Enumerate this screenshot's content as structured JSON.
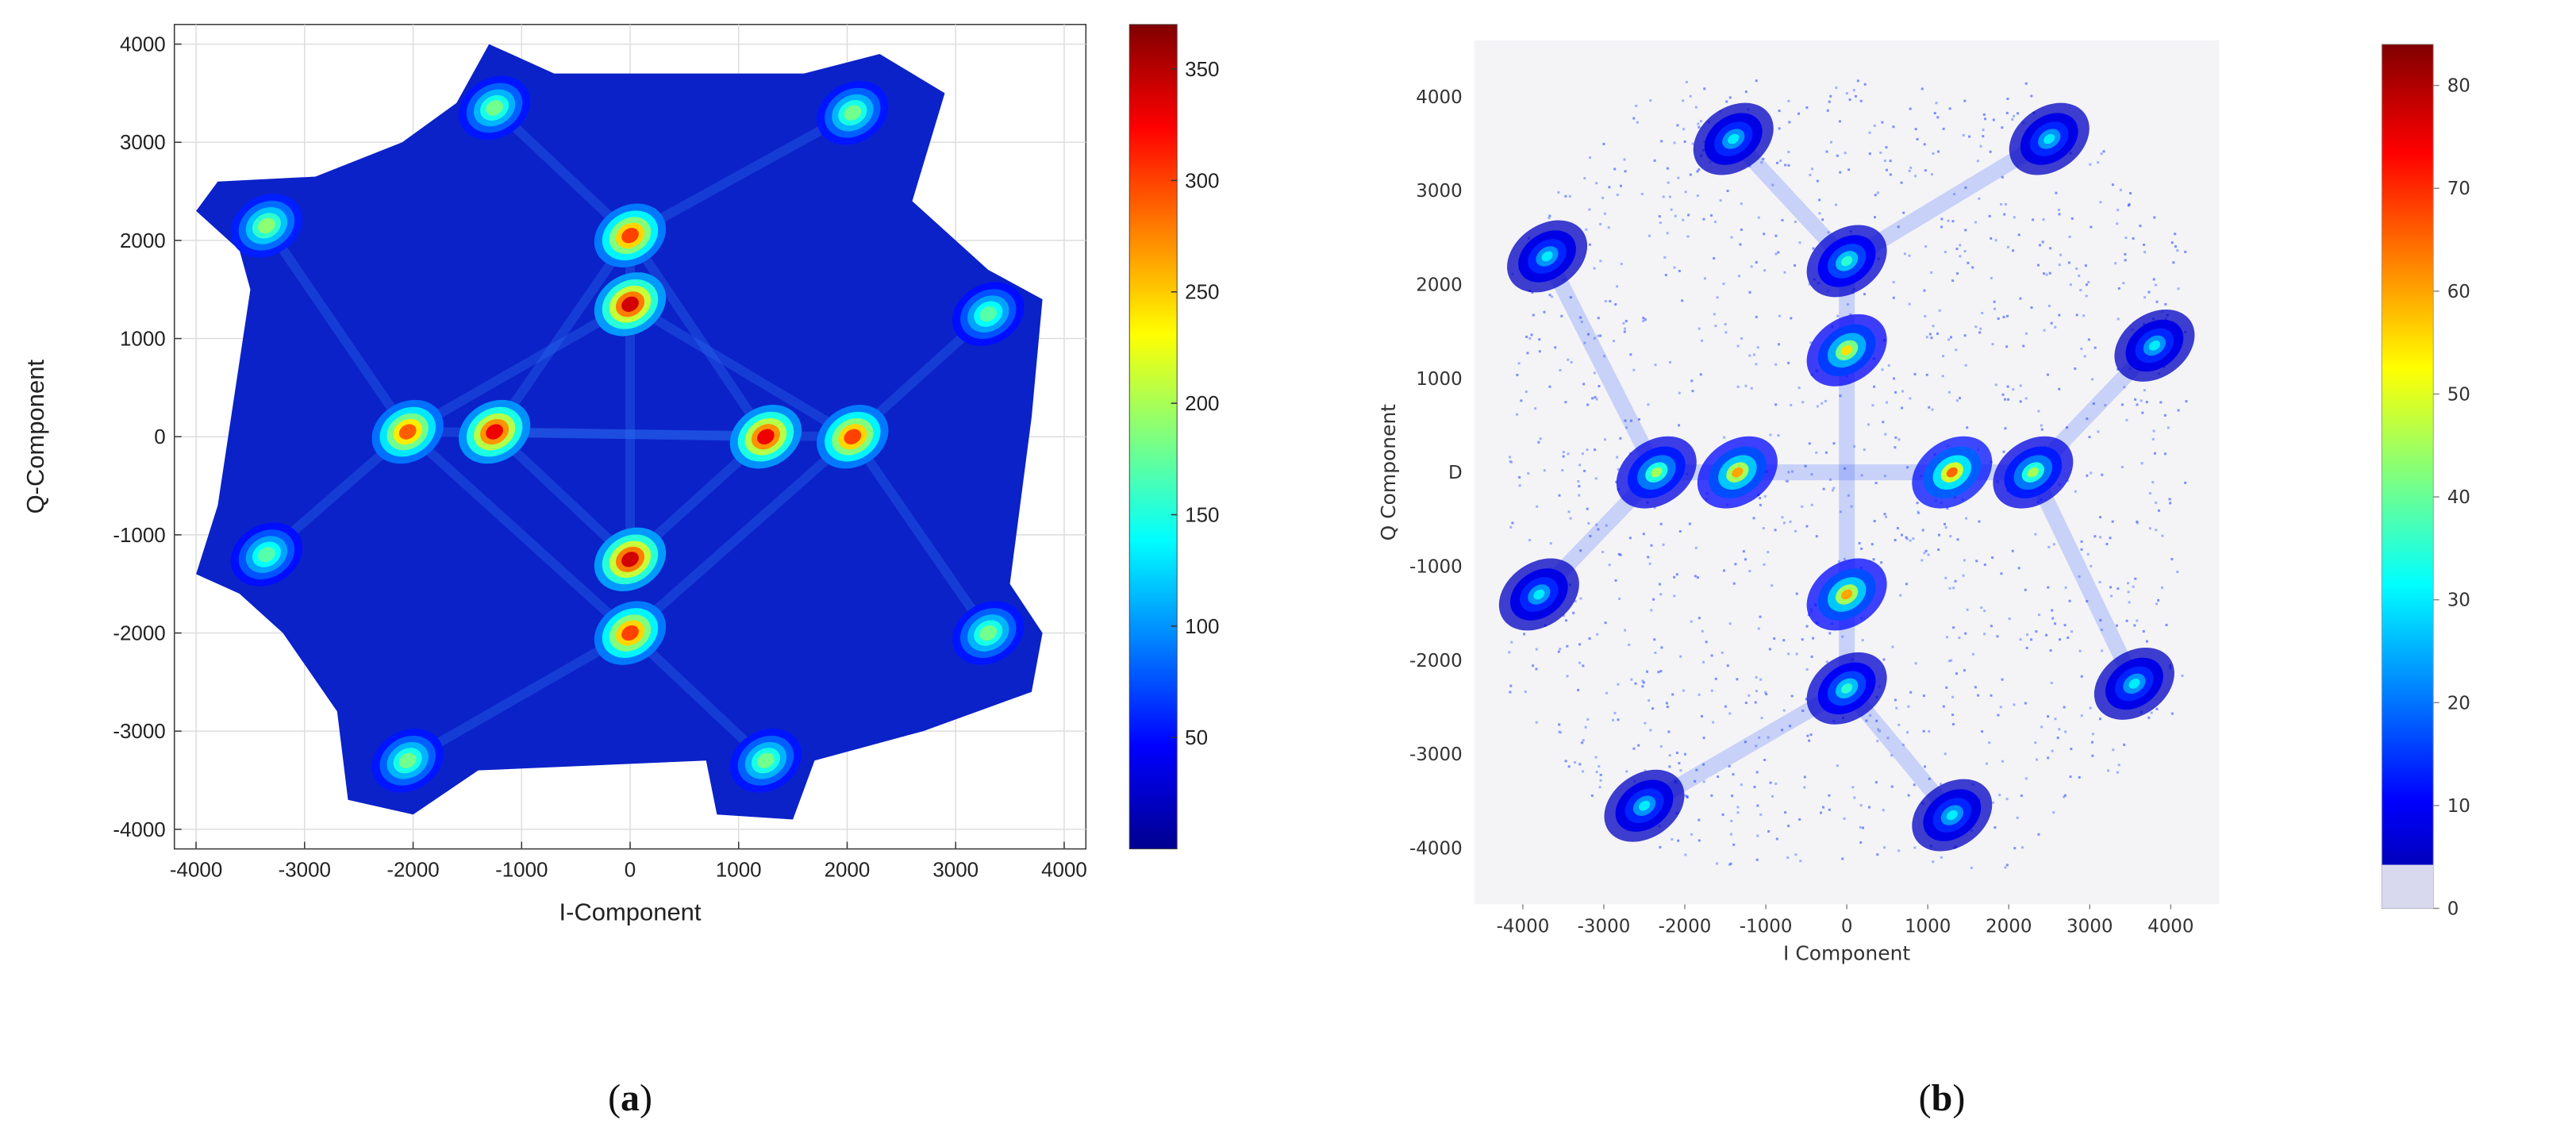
{
  "chart_data": [
    {
      "type": "heatmap",
      "panel": "a",
      "caption": [
        "(",
        "a",
        ")"
      ],
      "xlabel": "I-Component",
      "ylabel": "Q-Component",
      "xlim": [
        -4200,
        4200
      ],
      "ylim": [
        -4200,
        4200
      ],
      "xticks": [
        "-4000",
        "-3000",
        "-2000",
        "-1000",
        "0",
        "1000",
        "2000",
        "3000",
        "4000"
      ],
      "xtick_values": [
        -4000,
        -3000,
        -2000,
        -1000,
        0,
        1000,
        2000,
        3000,
        4000
      ],
      "yticks": [
        "4000",
        "3000",
        "2000",
        "1000",
        "0",
        "-1000",
        "-2000",
        "-3000",
        "-4000"
      ],
      "ytick_values": [
        4000,
        3000,
        2000,
        1000,
        0,
        -1000,
        -2000,
        -3000,
        -4000
      ],
      "grid": true,
      "colorbar": {
        "min": 0,
        "max": 370,
        "ticks": [
          "350",
          "300",
          "250",
          "200",
          "150",
          "100",
          "50"
        ],
        "tick_values": [
          350,
          300,
          250,
          200,
          150,
          100,
          50
        ]
      },
      "clusters": [
        {
          "x": -1250,
          "y": 3350,
          "intensity": 180
        },
        {
          "x": 2050,
          "y": 3300,
          "intensity": 180
        },
        {
          "x": -3350,
          "y": 2150,
          "intensity": 190
        },
        {
          "x": 0,
          "y": 2050,
          "intensity": 300
        },
        {
          "x": 0,
          "y": 1350,
          "intensity": 340
        },
        {
          "x": 3300,
          "y": 1250,
          "intensity": 170
        },
        {
          "x": -2050,
          "y": 50,
          "intensity": 290
        },
        {
          "x": -1250,
          "y": 50,
          "intensity": 330
        },
        {
          "x": 1250,
          "y": 0,
          "intensity": 330
        },
        {
          "x": 2050,
          "y": 0,
          "intensity": 300
        },
        {
          "x": -3350,
          "y": -1200,
          "intensity": 170
        },
        {
          "x": 0,
          "y": -1250,
          "intensity": 340
        },
        {
          "x": 0,
          "y": -2000,
          "intensity": 300
        },
        {
          "x": 3300,
          "y": -2000,
          "intensity": 180
        },
        {
          "x": -2050,
          "y": -3300,
          "intensity": 180
        },
        {
          "x": 1250,
          "y": -3300,
          "intensity": 180
        }
      ]
    },
    {
      "type": "heatmap",
      "panel": "b",
      "caption": [
        "(",
        "b",
        ")"
      ],
      "xlabel": "I Component",
      "ylabel": "Q Component",
      "xlim": [
        -4600,
        4600
      ],
      "ylim": [
        -4600,
        4600
      ],
      "xticks": [
        "-4000",
        "-3000",
        "-2000",
        "-1000",
        "0",
        "1000",
        "2000",
        "3000",
        "4000"
      ],
      "xtick_values": [
        -4000,
        -3000,
        -2000,
        -1000,
        0,
        1000,
        2000,
        3000,
        4000
      ],
      "yticks": [
        "4000",
        "3000",
        "2000",
        "1000",
        "D",
        "-1000",
        "-2000",
        "-3000",
        "-4000"
      ],
      "ytick_values": [
        4000,
        3000,
        2000,
        1000,
        0,
        -1000,
        -2000,
        -3000,
        -4000
      ],
      "grid": false,
      "colorbar": {
        "min": 0,
        "max": 84,
        "ticks": [
          "80",
          "70",
          "60",
          "50",
          "40",
          "30",
          "20",
          "10",
          "0"
        ],
        "tick_values": [
          80,
          70,
          60,
          50,
          40,
          30,
          20,
          10,
          0
        ]
      },
      "clusters": [
        {
          "x": -1400,
          "y": 3550,
          "intensity": 30
        },
        {
          "x": 2500,
          "y": 3550,
          "intensity": 30
        },
        {
          "x": -3700,
          "y": 2300,
          "intensity": 30
        },
        {
          "x": 0,
          "y": 2250,
          "intensity": 35
        },
        {
          "x": 0,
          "y": 1300,
          "intensity": 55
        },
        {
          "x": 3800,
          "y": 1350,
          "intensity": 30
        },
        {
          "x": -2350,
          "y": 0,
          "intensity": 45
        },
        {
          "x": -1350,
          "y": 0,
          "intensity": 60
        },
        {
          "x": 1300,
          "y": 0,
          "intensity": 65
        },
        {
          "x": 2300,
          "y": 0,
          "intensity": 45
        },
        {
          "x": -3800,
          "y": -1300,
          "intensity": 30
        },
        {
          "x": 0,
          "y": -1300,
          "intensity": 60
        },
        {
          "x": 0,
          "y": -2300,
          "intensity": 35
        },
        {
          "x": 3550,
          "y": -2250,
          "intensity": 30
        },
        {
          "x": -2500,
          "y": -3550,
          "intensity": 30
        },
        {
          "x": 1300,
          "y": -3650,
          "intensity": 30
        }
      ]
    }
  ]
}
